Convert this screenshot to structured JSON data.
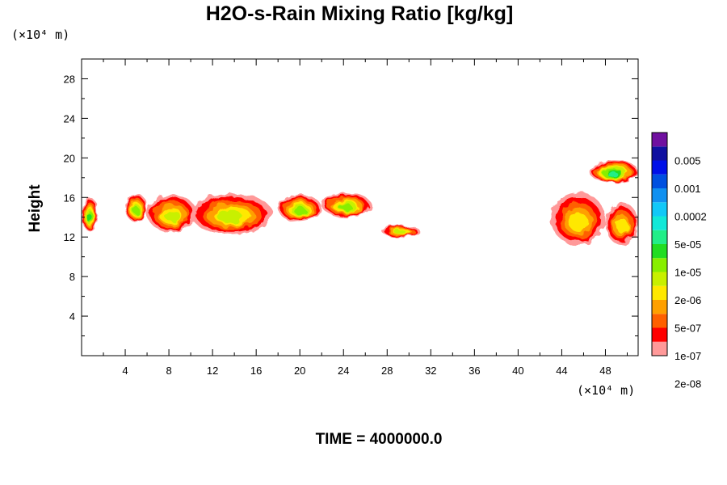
{
  "chart_data": {
    "type": "contour",
    "title": "H2O-s-Rain Mixing Ratio [kg/kg]",
    "xlabel": "",
    "ylabel": "Height",
    "x_unit": "(×10⁴ m)",
    "y_unit": "(×10⁴ m)",
    "xlim": [
      0,
      51
    ],
    "ylim": [
      0,
      30
    ],
    "x_ticks": [
      4,
      8,
      12,
      16,
      20,
      24,
      28,
      32,
      36,
      40,
      44,
      48
    ],
    "y_ticks": [
      4,
      8,
      12,
      16,
      20,
      24,
      28
    ],
    "time_label": "TIME = 4000000.0",
    "legend_labels": [
      "0.005",
      "0.001",
      "0.0002",
      "5e-05",
      "1e-05",
      "2e-06",
      "5e-07",
      "1e-07",
      "2e-08"
    ],
    "legend_colors": [
      "#ff9999",
      "#ff0000",
      "#ff6000",
      "#ffa000",
      "#ffe800",
      "#c8f000",
      "#88ee00",
      "#22dd22",
      "#22ee88",
      "#11e8d8",
      "#11c8f8",
      "#1090f0",
      "#0050e0",
      "#0010e8",
      "#1010a0",
      "#7010a0"
    ],
    "cells": [
      {
        "name": "cell-far-left",
        "x": [
          0,
          1.5
        ],
        "y": [
          12.6,
          16
        ],
        "peak_level": 7
      },
      {
        "name": "cell-left-small",
        "x": [
          4,
          6
        ],
        "y": [
          13.5,
          16.4
        ],
        "peak_level": 6
      },
      {
        "name": "cell-main-a",
        "x": [
          6,
          10.5
        ],
        "y": [
          12.5,
          16.3
        ],
        "peak_level": 5
      },
      {
        "name": "cell-main-b",
        "x": [
          10,
          17.5
        ],
        "y": [
          12.3,
          16.4
        ],
        "peak_level": 5
      },
      {
        "name": "cell-main-c",
        "x": [
          18,
          22
        ],
        "y": [
          13.5,
          16.3
        ],
        "peak_level": 6
      },
      {
        "name": "cell-mid",
        "x": [
          22,
          26.5
        ],
        "y": [
          14,
          16.5
        ],
        "peak_level": 6
      },
      {
        "name": "cell-isolated",
        "x": [
          27.5,
          31
        ],
        "y": [
          12,
          13.2
        ],
        "peak_level": 5
      },
      {
        "name": "cell-right-large",
        "x": [
          43,
          48
        ],
        "y": [
          11.2,
          16.5
        ],
        "peak_level": 4
      },
      {
        "name": "cell-right-anvil",
        "x": [
          46.5,
          51
        ],
        "y": [
          17.5,
          19.8
        ],
        "peak_level": 8
      },
      {
        "name": "cell-right-edge",
        "x": [
          48,
          51
        ],
        "y": [
          11.2,
          15.5
        ],
        "peak_level": 4
      }
    ]
  }
}
